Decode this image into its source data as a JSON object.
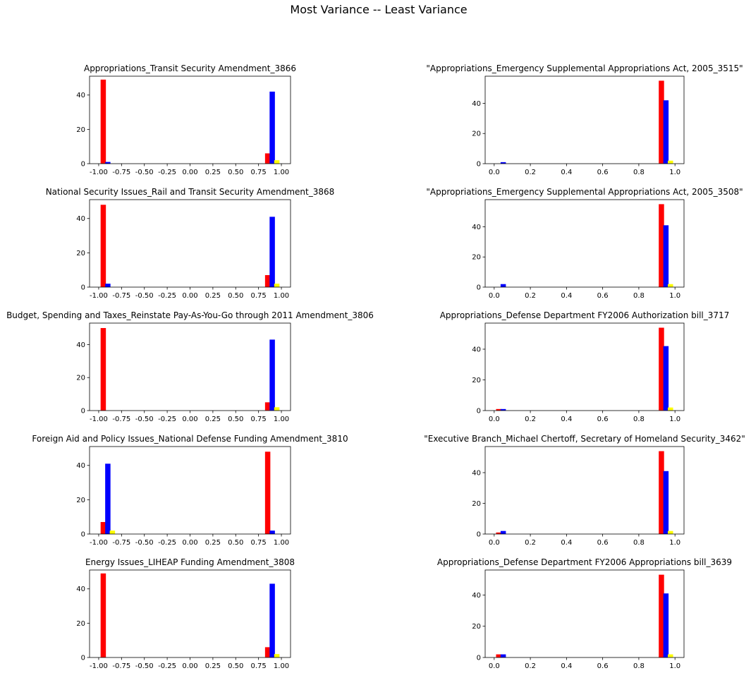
{
  "figure": {
    "title": "Most Variance -- Least Variance"
  },
  "colors": {
    "series": [
      "#ff0000",
      "#0000ff",
      "#ffff00"
    ]
  },
  "chart_data": [
    {
      "type": "bar",
      "title": "Appropriations_Transit Security Amendment_3866",
      "xlim": [
        -1.1,
        1.1
      ],
      "ylim": [
        0,
        51
      ],
      "xticks": [
        "-1.00",
        "-0.75",
        "-0.50",
        "-0.25",
        "0.00",
        "0.25",
        "0.50",
        "0.75",
        "1.00"
      ],
      "yticks": [
        "0",
        "20",
        "40"
      ],
      "series": [
        {
          "color": "#ff0000",
          "bars": [
            {
              "x": -0.95,
              "value": 49
            },
            {
              "x": 0.85,
              "value": 6
            }
          ]
        },
        {
          "color": "#0000ff",
          "bars": [
            {
              "x": -0.9,
              "value": 1
            },
            {
              "x": 0.9,
              "value": 42
            }
          ]
        },
        {
          "color": "#ffff00",
          "bars": [
            {
              "x": 0.95,
              "value": 2
            }
          ]
        }
      ]
    },
    {
      "type": "bar",
      "title": "\"Appropriations_Emergency Supplemental Appropriations Act, 2005_3515\"",
      "xlim": [
        -0.05,
        1.05
      ],
      "ylim": [
        0,
        58
      ],
      "xticks": [
        "0.0",
        "0.2",
        "0.4",
        "0.6",
        "0.8",
        "1.0"
      ],
      "yticks": [
        "0",
        "20",
        "40"
      ],
      "series": [
        {
          "color": "#ff0000",
          "bars": [
            {
              "x": 0.925,
              "value": 55
            }
          ]
        },
        {
          "color": "#0000ff",
          "bars": [
            {
              "x": 0.05,
              "value": 1
            },
            {
              "x": 0.95,
              "value": 42
            }
          ]
        },
        {
          "color": "#ffff00",
          "bars": [
            {
              "x": 0.975,
              "value": 2
            }
          ]
        }
      ]
    },
    {
      "type": "bar",
      "title": "National Security Issues_Rail and Transit Security Amendment_3868",
      "xlim": [
        -1.1,
        1.1
      ],
      "ylim": [
        0,
        51
      ],
      "xticks": [
        "-1.00",
        "-0.75",
        "-0.50",
        "-0.25",
        "0.00",
        "0.25",
        "0.50",
        "0.75",
        "1.00"
      ],
      "yticks": [
        "0",
        "20",
        "40"
      ],
      "series": [
        {
          "color": "#ff0000",
          "bars": [
            {
              "x": -0.95,
              "value": 48
            },
            {
              "x": 0.85,
              "value": 7
            }
          ]
        },
        {
          "color": "#0000ff",
          "bars": [
            {
              "x": -0.9,
              "value": 2
            },
            {
              "x": 0.9,
              "value": 41
            }
          ]
        },
        {
          "color": "#ffff00",
          "bars": [
            {
              "x": 0.95,
              "value": 2
            }
          ]
        }
      ]
    },
    {
      "type": "bar",
      "title": "\"Appropriations_Emergency Supplemental Appropriations Act, 2005_3508\"",
      "xlim": [
        -0.05,
        1.05
      ],
      "ylim": [
        0,
        58
      ],
      "xticks": [
        "0.0",
        "0.2",
        "0.4",
        "0.6",
        "0.8",
        "1.0"
      ],
      "yticks": [
        "0",
        "20",
        "40"
      ],
      "series": [
        {
          "color": "#ff0000",
          "bars": [
            {
              "x": 0.925,
              "value": 55
            }
          ]
        },
        {
          "color": "#0000ff",
          "bars": [
            {
              "x": 0.05,
              "value": 2
            },
            {
              "x": 0.95,
              "value": 41
            }
          ]
        },
        {
          "color": "#ffff00",
          "bars": [
            {
              "x": 0.975,
              "value": 2
            }
          ]
        }
      ]
    },
    {
      "type": "bar",
      "title": "Budget, Spending and Taxes_Reinstate Pay-As-You-Go through 2011 Amendment_3806",
      "xlim": [
        -1.1,
        1.1
      ],
      "ylim": [
        0,
        53
      ],
      "xticks": [
        "-1.00",
        "-0.75",
        "-0.50",
        "-0.25",
        "0.00",
        "0.25",
        "0.50",
        "0.75",
        "1.00"
      ],
      "yticks": [
        "0",
        "20",
        "40"
      ],
      "series": [
        {
          "color": "#ff0000",
          "bars": [
            {
              "x": -0.95,
              "value": 50
            },
            {
              "x": 0.85,
              "value": 5
            }
          ]
        },
        {
          "color": "#0000ff",
          "bars": [
            {
              "x": 0.9,
              "value": 43
            }
          ]
        },
        {
          "color": "#ffff00",
          "bars": [
            {
              "x": 0.95,
              "value": 2
            }
          ]
        }
      ]
    },
    {
      "type": "bar",
      "title": "Appropriations_Defense Department FY2006 Authorization bill_3717",
      "xlim": [
        -0.05,
        1.05
      ],
      "ylim": [
        0,
        57
      ],
      "xticks": [
        "0.0",
        "0.2",
        "0.4",
        "0.6",
        "0.8",
        "1.0"
      ],
      "yticks": [
        "0",
        "20",
        "40"
      ],
      "series": [
        {
          "color": "#ff0000",
          "bars": [
            {
              "x": 0.025,
              "value": 1
            },
            {
              "x": 0.925,
              "value": 54
            }
          ]
        },
        {
          "color": "#0000ff",
          "bars": [
            {
              "x": 0.05,
              "value": 1
            },
            {
              "x": 0.95,
              "value": 42
            }
          ]
        },
        {
          "color": "#ffff00",
          "bars": [
            {
              "x": 0.975,
              "value": 2
            }
          ]
        }
      ]
    },
    {
      "type": "bar",
      "title": "Foreign Aid and Policy Issues_National Defense Funding Amendment_3810",
      "xlim": [
        -1.1,
        1.1
      ],
      "ylim": [
        0,
        51
      ],
      "xticks": [
        "-1.00",
        "-0.75",
        "-0.50",
        "-0.25",
        "0.00",
        "0.25",
        "0.50",
        "0.75",
        "1.00"
      ],
      "yticks": [
        "0",
        "20",
        "40"
      ],
      "series": [
        {
          "color": "#ff0000",
          "bars": [
            {
              "x": -0.95,
              "value": 7
            },
            {
              "x": 0.85,
              "value": 48
            }
          ]
        },
        {
          "color": "#0000ff",
          "bars": [
            {
              "x": -0.9,
              "value": 41
            },
            {
              "x": 0.9,
              "value": 2
            }
          ]
        },
        {
          "color": "#ffff00",
          "bars": [
            {
              "x": -0.85,
              "value": 2
            }
          ]
        }
      ]
    },
    {
      "type": "bar",
      "title": "\"Executive Branch_Michael Chertoff, Secretary of Homeland Security_3462\"",
      "xlim": [
        -0.05,
        1.05
      ],
      "ylim": [
        0,
        57
      ],
      "xticks": [
        "0.0",
        "0.2",
        "0.4",
        "0.6",
        "0.8",
        "1.0"
      ],
      "yticks": [
        "0",
        "20",
        "40"
      ],
      "series": [
        {
          "color": "#ff0000",
          "bars": [
            {
              "x": 0.025,
              "value": 1
            },
            {
              "x": 0.925,
              "value": 54
            }
          ]
        },
        {
          "color": "#0000ff",
          "bars": [
            {
              "x": 0.05,
              "value": 2
            },
            {
              "x": 0.95,
              "value": 41
            }
          ]
        },
        {
          "color": "#ffff00",
          "bars": [
            {
              "x": 0.975,
              "value": 2
            }
          ]
        }
      ]
    },
    {
      "type": "bar",
      "title": "Energy Issues_LIHEAP Funding Amendment_3808",
      "xlim": [
        -1.1,
        1.1
      ],
      "ylim": [
        0,
        51
      ],
      "xticks": [
        "-1.00",
        "-0.75",
        "-0.50",
        "-0.25",
        "0.00",
        "0.25",
        "0.50",
        "0.75",
        "1.00"
      ],
      "yticks": [
        "0",
        "20",
        "40"
      ],
      "series": [
        {
          "color": "#ff0000",
          "bars": [
            {
              "x": -0.95,
              "value": 49
            },
            {
              "x": 0.85,
              "value": 6
            }
          ]
        },
        {
          "color": "#0000ff",
          "bars": [
            {
              "x": 0.9,
              "value": 43
            }
          ]
        },
        {
          "color": "#ffff00",
          "bars": [
            {
              "x": 0.95,
              "value": 2
            }
          ]
        }
      ]
    },
    {
      "type": "bar",
      "title": "Appropriations_Defense Department FY2006 Appropriations bill_3639",
      "xlim": [
        -0.05,
        1.05
      ],
      "ylim": [
        0,
        56
      ],
      "xticks": [
        "0.0",
        "0.2",
        "0.4",
        "0.6",
        "0.8",
        "1.0"
      ],
      "yticks": [
        "0",
        "20",
        "40"
      ],
      "series": [
        {
          "color": "#ff0000",
          "bars": [
            {
              "x": 0.025,
              "value": 2
            },
            {
              "x": 0.925,
              "value": 53
            }
          ]
        },
        {
          "color": "#0000ff",
          "bars": [
            {
              "x": 0.05,
              "value": 2
            },
            {
              "x": 0.95,
              "value": 41
            }
          ]
        },
        {
          "color": "#ffff00",
          "bars": [
            {
              "x": 0.975,
              "value": 2
            }
          ]
        }
      ]
    }
  ]
}
